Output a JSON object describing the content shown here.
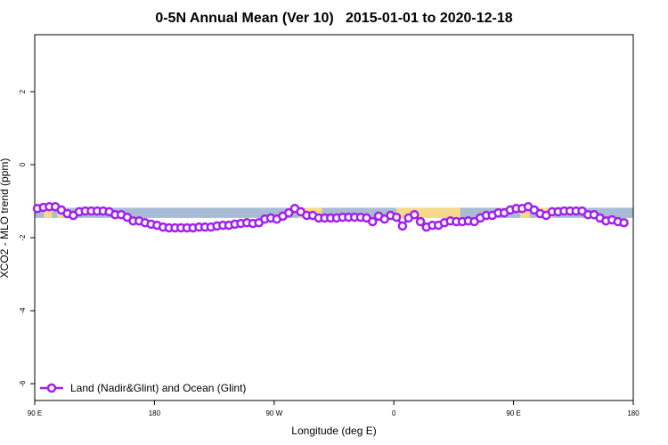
{
  "chart_data": {
    "type": "line",
    "title": "0-5N Annual Mean (Ver 10)   2015-01-01 to 2020-12-18",
    "xlabel": "Longitude (deg E)",
    "ylabel": "XCO2 - MLO trend (ppm)",
    "xlim": [
      90,
      540
    ],
    "ylim": [
      -6.46,
      3.56
    ],
    "xticks": [
      {
        "value": 90,
        "label": "90 E"
      },
      180,
      {
        "value": 270,
        "label": "90 W"
      },
      0,
      {
        "value": 450,
        "label": "90 E"
      },
      180
    ],
    "yticks": [
      -6,
      -4,
      -2,
      0,
      2
    ],
    "legend": "bottom-left",
    "band": {
      "range": [
        -1.46,
        -1.18
      ],
      "color": "#a9bcd6"
    },
    "land": {
      "color": "#f7d98c",
      "spans": [
        [
          97,
          103
        ],
        [
          107,
          114
        ],
        [
          288,
          306
        ],
        [
          362,
          410
        ],
        [
          455,
          462
        ],
        [
          467,
          480
        ]
      ]
    },
    "x": [
      92,
      96.5,
      101,
      105.5,
      110,
      114.5,
      119,
      123.5,
      128,
      132.5,
      137,
      141.5,
      146,
      150.5,
      155,
      159.5,
      164,
      168.5,
      173,
      177.5,
      182,
      186.5,
      191,
      195.5,
      200,
      204.5,
      209,
      213.5,
      218,
      222.5,
      227,
      231.5,
      236,
      240.5,
      245,
      249.5,
      254,
      258.5,
      263,
      267.5,
      272,
      276.5,
      281,
      285.5,
      290,
      294.5,
      299,
      303.5,
      308,
      312.5,
      317,
      321.5,
      326,
      330.5,
      335,
      339.5,
      344,
      348.5,
      353,
      357.5,
      362,
      366.5,
      371,
      375.5,
      380,
      384.5,
      389,
      393.5,
      398,
      402.5,
      407,
      411.5,
      416,
      420.5,
      425,
      429.5,
      434,
      438.5,
      443,
      447.5,
      452,
      456.5,
      461,
      465.5,
      470,
      474.5,
      479,
      483.5,
      488,
      492.5,
      497,
      501.5,
      506,
      510.5,
      515,
      519.5,
      524,
      528.5,
      533
    ],
    "series": [
      {
        "name": "Land (Nadir&Glint) and Ocean (Glint)",
        "color": "#a020f0",
        "values": [
          -1.2,
          -1.17,
          -1.15,
          -1.15,
          -1.24,
          -1.34,
          -1.39,
          -1.29,
          -1.27,
          -1.27,
          -1.27,
          -1.27,
          -1.29,
          -1.37,
          -1.37,
          -1.44,
          -1.54,
          -1.54,
          -1.59,
          -1.63,
          -1.66,
          -1.71,
          -1.73,
          -1.73,
          -1.73,
          -1.73,
          -1.73,
          -1.71,
          -1.71,
          -1.71,
          -1.68,
          -1.66,
          -1.66,
          -1.63,
          -1.61,
          -1.59,
          -1.61,
          -1.59,
          -1.49,
          -1.46,
          -1.49,
          -1.41,
          -1.32,
          -1.2,
          -1.29,
          -1.39,
          -1.39,
          -1.46,
          -1.46,
          -1.46,
          -1.46,
          -1.44,
          -1.44,
          -1.44,
          -1.44,
          -1.46,
          -1.56,
          -1.41,
          -1.49,
          -1.39,
          -1.44,
          -1.68,
          -1.46,
          -1.37,
          -1.56,
          -1.71,
          -1.66,
          -1.66,
          -1.59,
          -1.54,
          -1.56,
          -1.56,
          -1.54,
          -1.56,
          -1.46,
          -1.39,
          -1.39,
          -1.32,
          -1.32,
          -1.24,
          -1.2,
          -1.2,
          -1.15,
          -1.24,
          -1.34,
          -1.39,
          -1.29,
          -1.29,
          -1.27,
          -1.27,
          -1.27,
          -1.27,
          -1.37,
          -1.37,
          -1.46,
          -1.54,
          -1.51,
          -1.56,
          -1.59
        ]
      }
    ]
  }
}
